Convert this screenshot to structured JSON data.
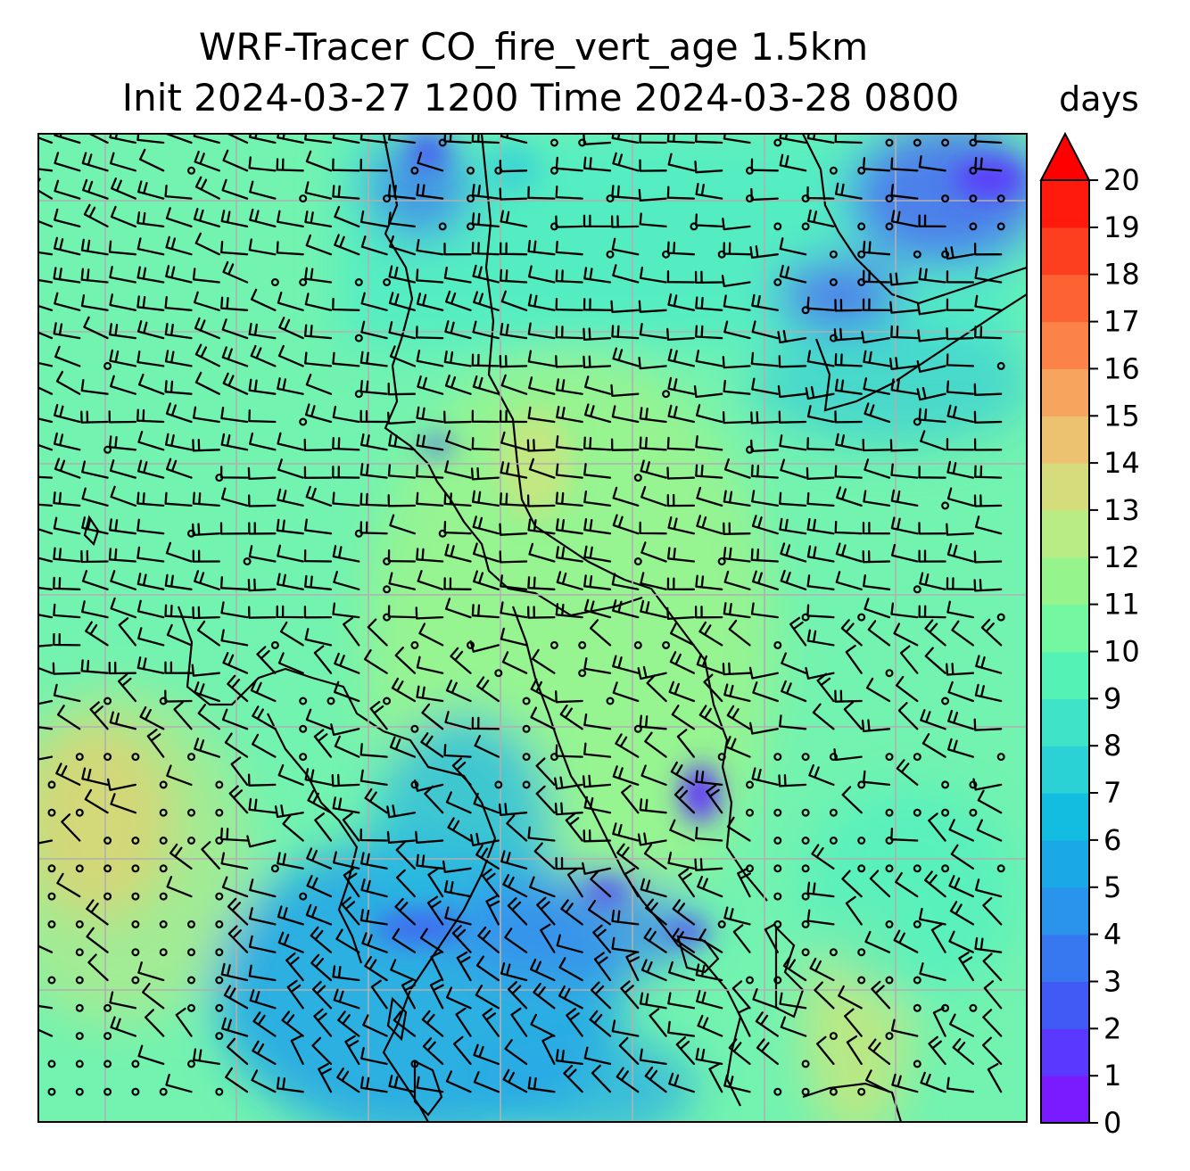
{
  "figure": {
    "title_line1": "WRF-Tracer CO_fire_vert_age 1.5km",
    "title_line2": "Init 2024-03-27 1200 Time 2024-03-28 0800",
    "units": "days"
  },
  "colorbar": {
    "min": 0,
    "max": 20,
    "step": 1,
    "extend": "max",
    "tick_labels": [
      "0",
      "1",
      "2",
      "3",
      "4",
      "5",
      "6",
      "7",
      "8",
      "9",
      "10",
      "11",
      "12",
      "13",
      "14",
      "15",
      "16",
      "17",
      "18",
      "19",
      "20"
    ],
    "colors": [
      "#7a1bff",
      "#5b38ff",
      "#4159f5",
      "#3778f0",
      "#2a94ec",
      "#1aa8e6",
      "#12bde0",
      "#2ad2d6",
      "#3ee3c8",
      "#55f2b6",
      "#73f7a0",
      "#95f58c",
      "#b9ec84",
      "#d5dc7c",
      "#ecc170",
      "#f7a45e",
      "#fb8348",
      "#fd6233",
      "#fe3f1f",
      "#ff1a0d"
    ],
    "extend_color": "#ff0000"
  },
  "map": {
    "gridlines": true,
    "grid_color": "#b0b0b0",
    "background_color": "#73f3b0",
    "field_regions": [
      {
        "name": "north-east-low",
        "value": 2
      },
      {
        "name": "north-central-low",
        "value": 4
      },
      {
        "name": "central-peninsula",
        "value": 11
      },
      {
        "name": "west-high",
        "value": 15
      },
      {
        "name": "south-west-gulf-low",
        "value": 4
      },
      {
        "name": "south-central-low",
        "value": 3
      },
      {
        "name": "south-east-medium",
        "value": 12
      },
      {
        "name": "east-coast-spot",
        "value": 1
      }
    ],
    "wind_barbs": true
  }
}
